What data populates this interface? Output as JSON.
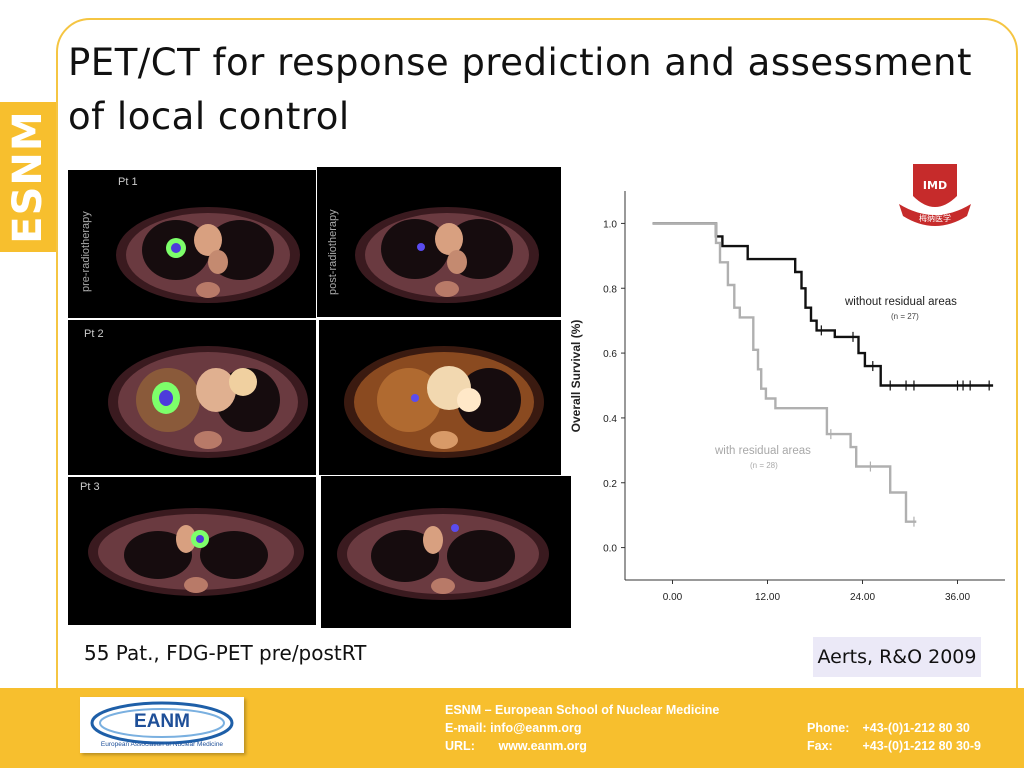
{
  "side_tab": {
    "label": "ESNM"
  },
  "title": "PET/CT for response prediction and assessment of local control",
  "images": {
    "patients": [
      {
        "label": "Pt 1",
        "pre_label": "pre-radiotherapy",
        "post_label": "post-radiotherapy"
      },
      {
        "label": "Pt 2"
      },
      {
        "label": "Pt 3"
      }
    ]
  },
  "caption": "55 Pat., FDG-PET pre/postRT",
  "reference": "Aerts, R&O 2009",
  "watermark": {
    "text": "IMD",
    "subtext": "梅纳医学"
  },
  "chart_data": {
    "type": "line",
    "title": "",
    "xlabel": "",
    "ylabel": "Overall Survival (%)",
    "xlim": [
      -6,
      42
    ],
    "ylim": [
      -0.1,
      1.1
    ],
    "xticks": [
      0,
      12,
      24,
      36
    ],
    "xtick_labels": [
      "0.00",
      "12.00",
      "24.00",
      "36.00"
    ],
    "yticks": [
      0.0,
      0.2,
      0.4,
      0.6,
      0.8,
      1.0
    ],
    "ytick_labels": [
      "0.0",
      "0.2",
      "0.4",
      "0.6",
      "0.8",
      "1.0"
    ],
    "series": [
      {
        "name": "without residual areas",
        "n_label": "(n = 27)",
        "color": "#111111",
        "steps": [
          [
            -2.5,
            1.0
          ],
          [
            5.5,
            1.0
          ],
          [
            5.5,
            0.96
          ],
          [
            6.3,
            0.96
          ],
          [
            6.3,
            0.93
          ],
          [
            9.5,
            0.93
          ],
          [
            9.5,
            0.89
          ],
          [
            15.5,
            0.89
          ],
          [
            15.5,
            0.85
          ],
          [
            16.3,
            0.85
          ],
          [
            16.3,
            0.8
          ],
          [
            16.8,
            0.8
          ],
          [
            16.8,
            0.74
          ],
          [
            17.5,
            0.74
          ],
          [
            17.5,
            0.7
          ],
          [
            18.2,
            0.7
          ],
          [
            18.2,
            0.67
          ],
          [
            20.5,
            0.67
          ],
          [
            20.5,
            0.65
          ],
          [
            23.5,
            0.65
          ],
          [
            23.5,
            0.6
          ],
          [
            24.3,
            0.6
          ],
          [
            24.3,
            0.56
          ],
          [
            26.3,
            0.56
          ],
          [
            26.3,
            0.5
          ],
          [
            40.5,
            0.5
          ]
        ],
        "censors": [
          [
            18.8,
            0.67
          ],
          [
            22.8,
            0.65
          ],
          [
            25.3,
            0.56
          ],
          [
            27.5,
            0.5
          ],
          [
            29.5,
            0.5
          ],
          [
            30.5,
            0.5
          ],
          [
            36.0,
            0.5
          ],
          [
            36.7,
            0.5
          ],
          [
            37.6,
            0.5
          ],
          [
            40.0,
            0.5
          ]
        ]
      },
      {
        "name": "with residual areas",
        "n_label": "(n = 28)",
        "color": "#b0b0b0",
        "steps": [
          [
            -2.5,
            1.0
          ],
          [
            5.5,
            1.0
          ],
          [
            5.5,
            0.94
          ],
          [
            6.0,
            0.94
          ],
          [
            6.0,
            0.88
          ],
          [
            7.0,
            0.88
          ],
          [
            7.0,
            0.81
          ],
          [
            7.8,
            0.81
          ],
          [
            7.8,
            0.74
          ],
          [
            8.5,
            0.74
          ],
          [
            8.5,
            0.71
          ],
          [
            10.2,
            0.71
          ],
          [
            10.2,
            0.61
          ],
          [
            10.8,
            0.61
          ],
          [
            10.8,
            0.55
          ],
          [
            11.2,
            0.55
          ],
          [
            11.2,
            0.49
          ],
          [
            11.8,
            0.49
          ],
          [
            11.8,
            0.46
          ],
          [
            13.0,
            0.46
          ],
          [
            13.0,
            0.43
          ],
          [
            19.5,
            0.43
          ],
          [
            19.5,
            0.35
          ],
          [
            22.5,
            0.35
          ],
          [
            22.5,
            0.31
          ],
          [
            23.2,
            0.31
          ],
          [
            23.2,
            0.25
          ],
          [
            27.5,
            0.25
          ],
          [
            27.5,
            0.17
          ],
          [
            29.5,
            0.17
          ],
          [
            29.5,
            0.08
          ],
          [
            30.8,
            0.08
          ]
        ],
        "censors": [
          [
            20.0,
            0.35
          ],
          [
            25.0,
            0.25
          ],
          [
            30.5,
            0.08
          ]
        ]
      }
    ]
  },
  "footer": {
    "logo_text": "EANM",
    "logo_sub": "European Association of Nuclear Medicine",
    "school": "ESNM – European School of Nuclear Medicine",
    "email_label": "E-mail:",
    "email": "info@eanm.org",
    "url_label": "URL:",
    "url": "www.eanm.org",
    "phone_label": "Phone:",
    "phone": "+43-(0)1-212 80 30",
    "fax_label": "Fax:",
    "fax": "+43-(0)1-212 80 30-9"
  }
}
